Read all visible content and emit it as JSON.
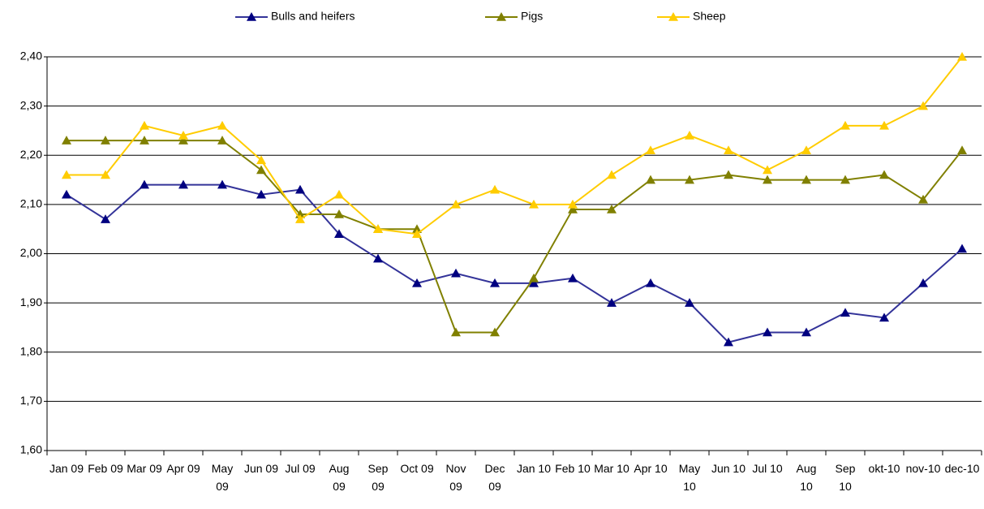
{
  "chart_data": {
    "type": "line",
    "categories": [
      "Jan 09",
      "Feb 09",
      "Mar 09",
      "Apr 09",
      "May 09",
      "Jun 09",
      "Jul 09",
      "Aug 09",
      "Sep 09",
      "Oct 09",
      "Nov 09",
      "Dec 09",
      "Jan 10",
      "Feb 10",
      "Mar 10",
      "Apr 10",
      "May 10",
      "Jun 10",
      "Jul 10",
      "Aug 10",
      "Sep 10",
      "okt-10",
      "nov-10",
      "dec-10"
    ],
    "series": [
      {
        "name": "Bulls and heifers",
        "color": "#333399",
        "marker_color": "#000080",
        "values": [
          2.12,
          2.07,
          2.14,
          2.14,
          2.14,
          2.12,
          2.13,
          2.04,
          1.99,
          1.94,
          1.96,
          1.94,
          1.94,
          1.95,
          1.9,
          1.94,
          1.9,
          1.82,
          1.84,
          1.84,
          1.88,
          1.87,
          1.94,
          2.01
        ]
      },
      {
        "name": "Pigs",
        "color": "#808000",
        "marker_color": "#808000",
        "values": [
          2.23,
          2.23,
          2.23,
          2.23,
          2.23,
          2.17,
          2.08,
          2.08,
          2.05,
          2.05,
          1.84,
          1.84,
          1.95,
          2.09,
          2.09,
          2.15,
          2.15,
          2.16,
          2.15,
          2.15,
          2.15,
          2.16,
          2.11,
          2.21
        ]
      },
      {
        "name": "Sheep",
        "color": "#ffcc00",
        "marker_color": "#ffcc00",
        "values": [
          2.16,
          2.16,
          2.26,
          2.24,
          2.26,
          2.19,
          2.07,
          2.12,
          2.05,
          2.04,
          2.1,
          2.13,
          2.1,
          2.1,
          2.16,
          2.21,
          2.24,
          2.21,
          2.17,
          2.21,
          2.26,
          2.26,
          2.3,
          2.4
        ]
      }
    ],
    "ylim": [
      1.6,
      2.4
    ],
    "yticks": [
      {
        "value": 1.6,
        "label": "1,60"
      },
      {
        "value": 1.7,
        "label": "1,70"
      },
      {
        "value": 1.8,
        "label": "1,80"
      },
      {
        "value": 1.9,
        "label": "1,90"
      },
      {
        "value": 2.0,
        "label": "2,00"
      },
      {
        "value": 2.1,
        "label": "2,10"
      },
      {
        "value": 2.2,
        "label": "2,20"
      },
      {
        "value": 2.3,
        "label": "2,30"
      },
      {
        "value": 2.4,
        "label": "2,40"
      }
    ],
    "grid": true,
    "legend": "top"
  }
}
